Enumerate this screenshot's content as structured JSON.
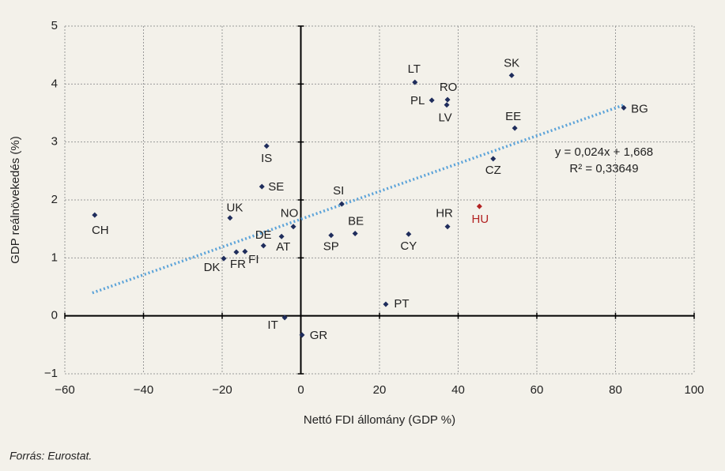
{
  "chart_data": {
    "type": "scatter",
    "x_label": "Nettó FDI állomány (GDP %)",
    "y_label": "GDP reálnövekedés (%)",
    "source": "Forrás: Eurostat.",
    "xlim": [
      -60,
      100
    ],
    "ylim": [
      -1,
      5
    ],
    "xticks": [
      {
        "value": -60,
        "label": "−60"
      },
      {
        "value": -40,
        "label": "−40"
      },
      {
        "value": -20,
        "label": "−20"
      },
      0,
      20,
      40,
      60,
      80,
      100
    ],
    "yticks": [
      {
        "value": -1,
        "label": "−1"
      },
      0,
      1,
      2,
      3,
      4,
      5
    ],
    "grid": true,
    "color": "#1f2d5c",
    "highlight_color": "#b22222",
    "points": [
      {
        "label": "CH",
        "x": -52.4,
        "y": 1.74
      },
      {
        "label": "UK",
        "x": -18.0,
        "y": 1.69
      },
      {
        "label": "IS",
        "x": -8.7,
        "y": 2.93
      },
      {
        "label": "SE",
        "x": -9.9,
        "y": 2.23
      },
      {
        "label": "NO",
        "x": -1.9,
        "y": 1.54
      },
      {
        "label": "DE",
        "x": -4.9,
        "y": 1.37
      },
      {
        "label": "AT",
        "x": -9.5,
        "y": 1.21
      },
      {
        "label": "FI",
        "x": -14.2,
        "y": 1.11
      },
      {
        "label": "FR",
        "x": -16.4,
        "y": 1.1
      },
      {
        "label": "DK",
        "x": -19.6,
        "y": 0.99
      },
      {
        "label": "IT",
        "x": -4.1,
        "y": -0.03
      },
      {
        "label": "GR",
        "x": 0.3,
        "y": -0.33
      },
      {
        "label": "SI",
        "x": 10.4,
        "y": 1.93
      },
      {
        "label": "BE",
        "x": 13.8,
        "y": 1.42
      },
      {
        "label": "SP",
        "x": 7.7,
        "y": 1.39
      },
      {
        "label": "CY",
        "x": 27.4,
        "y": 1.41
      },
      {
        "label": "PT",
        "x": 21.6,
        "y": 0.2
      },
      {
        "label": "LT",
        "x": 29.0,
        "y": 4.03
      },
      {
        "label": "PL",
        "x": 33.3,
        "y": 3.72
      },
      {
        "label": "RO",
        "x": 37.3,
        "y": 3.73
      },
      {
        "label": "LV",
        "x": 37.1,
        "y": 3.64
      },
      {
        "label": "SK",
        "x": 53.6,
        "y": 4.15
      },
      {
        "label": "EE",
        "x": 54.4,
        "y": 3.24
      },
      {
        "label": "CZ",
        "x": 48.9,
        "y": 2.71
      },
      {
        "label": "BG",
        "x": 82.1,
        "y": 3.59
      },
      {
        "label": "HR",
        "x": 37.3,
        "y": 1.54
      },
      {
        "label": "HU",
        "x": 45.4,
        "y": 1.89,
        "highlight": true
      }
    ],
    "trendline": {
      "x": [
        -53,
        82
      ],
      "y": [
        0.396,
        3.636
      ],
      "color": "#5ba3d9"
    },
    "annotations": [
      "y = 0,024x + 1,668",
      "R² = 0,33649"
    ]
  }
}
